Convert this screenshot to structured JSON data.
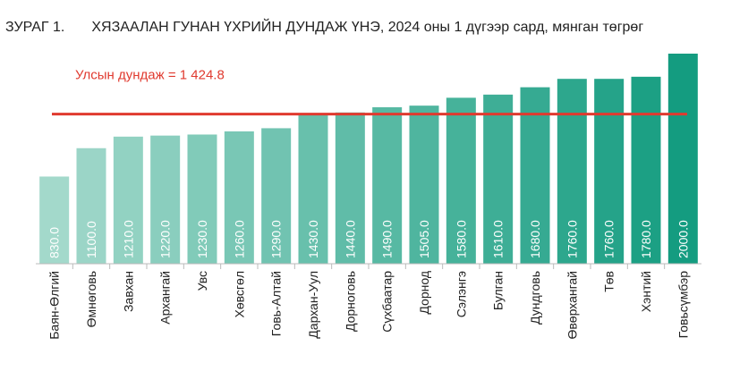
{
  "figure_label": "ЗУРАГ 1.",
  "chart_data": {
    "type": "bar",
    "title": "ХЯЗААЛАН ГУНАН ҮХРИЙН ДУНДАЖ ҮНЭ, 2024 оны 1 дүгээр сард, мянган төгрөг",
    "xlabel": "",
    "ylabel": "",
    "categories": [
      "Баян-Өлгий",
      "Өмнөговь",
      "Завхан",
      "Архангай",
      "Увс",
      "Хөвсгөл",
      "Говь-Алтай",
      "Дархан-Уул",
      "Дорноговь",
      "Сүхбаатар",
      "Дорнод",
      "Сэлэнгэ",
      "Булган",
      "Дундговь",
      "Өвөрхангай",
      "Төв",
      "Хэнтий",
      "Говьсүмбэр"
    ],
    "values": [
      830.0,
      1100.0,
      1210.0,
      1220.0,
      1230.0,
      1260.0,
      1290.0,
      1430.0,
      1440.0,
      1490.0,
      1505.0,
      1580.0,
      1610.0,
      1680.0,
      1760.0,
      1760.0,
      1780.0,
      2000.0
    ],
    "value_labels": [
      "830.0",
      "1100.0",
      "1210.0",
      "1220.0",
      "1230.0",
      "1260.0",
      "1290.0",
      "1430.0",
      "1440.0",
      "1490.0",
      "1505.0",
      "1580.0",
      "1610.0",
      "1680.0",
      "1760.0",
      "1760.0",
      "1780.0",
      "2000.0"
    ],
    "reference_line": {
      "label": "Улсын дундаж = 1 424.8",
      "value": 1424.8,
      "color": "#e03a2f"
    },
    "ylim": [
      0,
      2000
    ],
    "grid": false,
    "legend": "none",
    "colors": {
      "bar_light": "#a3d9cb",
      "bar_dark": "#149c80",
      "axis": "#bbbbbb"
    }
  }
}
